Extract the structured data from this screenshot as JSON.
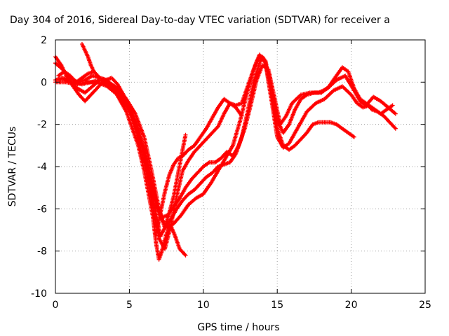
{
  "chart_data": {
    "type": "scatter",
    "title": "Day 304 of 2016, Sidereal Day-to-day VTEC variation (SDTVAR) for receiver a",
    "xlabel": "GPS time / hours",
    "ylabel": "SDTVAR / TECUs",
    "xlim": [
      0,
      25
    ],
    "ylim": [
      -10,
      2
    ],
    "xticks": [
      0,
      5,
      10,
      15,
      20,
      25
    ],
    "yticks": [
      -10,
      -8,
      -6,
      -4,
      -2,
      0,
      2
    ],
    "x_tick_labels": [
      "0",
      "5",
      "10",
      "15",
      "20",
      "25"
    ],
    "y_tick_labels": [
      "-10",
      "-8",
      "-6",
      "-4",
      "-2",
      "0",
      "2"
    ],
    "grid": true,
    "marker": "+",
    "marker_color": "#ff0000",
    "series": [
      {
        "x": [
          0.0,
          0.4,
          0.8,
          1.2,
          1.6,
          2.0,
          2.4,
          2.8,
          3.2,
          3.6,
          4.0,
          4.4,
          4.8,
          5.2,
          5.6,
          6.0,
          6.3,
          6.6,
          6.8,
          7.0,
          7.2,
          7.5,
          7.8,
          8.1,
          8.4,
          8.8
        ],
        "y": [
          1.2,
          0.8,
          0.2,
          -0.2,
          -0.6,
          -0.9,
          -0.6,
          -0.3,
          0.0,
          -0.1,
          -0.4,
          -0.9,
          -1.4,
          -2.2,
          -3.0,
          -4.2,
          -5.3,
          -6.4,
          -7.6,
          -8.4,
          -8.0,
          -7.2,
          -6.8,
          -7.3,
          -7.9,
          -8.2
        ]
      },
      {
        "x": [
          0.0,
          0.5,
          1.0,
          1.5,
          2.0,
          2.5,
          3.0,
          3.5,
          4.0,
          4.5,
          5.0,
          5.5,
          6.0,
          6.4,
          6.8,
          7.1,
          7.4,
          7.7,
          8.0,
          8.3,
          8.6,
          8.8
        ],
        "y": [
          0.9,
          0.6,
          0.2,
          0.0,
          0.1,
          0.3,
          0.2,
          0.1,
          -0.3,
          -0.8,
          -1.3,
          -2.0,
          -3.2,
          -4.8,
          -6.2,
          -7.3,
          -6.9,
          -6.2,
          -5.4,
          -4.3,
          -3.2,
          -2.5
        ]
      },
      {
        "x": [
          0.0,
          0.6,
          1.2,
          1.8,
          2.4,
          3.0,
          3.6,
          4.2,
          4.8,
          5.4,
          6.0,
          6.5,
          7.0,
          7.4,
          7.8,
          8.2,
          8.6,
          9.0,
          9.4,
          9.8,
          10.2,
          10.6,
          11.0,
          11.4,
          11.8,
          12.2,
          12.6,
          13.0,
          13.4,
          13.8,
          14.0,
          14.2,
          14.6,
          15.0,
          15.4,
          15.8,
          16.2,
          16.6,
          17.0,
          17.5,
          18.0,
          18.5,
          19.0,
          19.4,
          19.8,
          20.2,
          20.6,
          21.0,
          21.4,
          21.8,
          22.2,
          22.6,
          23.0
        ],
        "y": [
          0.1,
          0.1,
          0.0,
          -0.1,
          0.0,
          0.1,
          0.0,
          -0.3,
          -0.8,
          -1.5,
          -2.6,
          -4.2,
          -6.0,
          -6.9,
          -6.5,
          -6.0,
          -5.6,
          -5.3,
          -5.1,
          -4.8,
          -4.5,
          -4.3,
          -4.0,
          -3.9,
          -3.8,
          -3.4,
          -2.6,
          -1.4,
          0.0,
          0.9,
          1.2,
          1.0,
          -0.2,
          -1.8,
          -2.4,
          -2.0,
          -1.3,
          -0.8,
          -0.6,
          -0.5,
          -0.5,
          -0.2,
          0.3,
          0.7,
          0.5,
          -0.3,
          -0.8,
          -1.0,
          -1.3,
          -1.4,
          -1.6,
          -1.9,
          -2.2
        ]
      },
      {
        "x": [
          0.0,
          0.7,
          1.4,
          2.1,
          2.8,
          3.5,
          4.2,
          4.9,
          5.5,
          6.0,
          6.5,
          7.0,
          7.5,
          8.0,
          8.5,
          9.0,
          9.5,
          10.0,
          10.5,
          11.0,
          11.5,
          12.0,
          12.5,
          13.0,
          13.5,
          13.8,
          14.2,
          14.6,
          15.0,
          15.4,
          15.8,
          16.2,
          16.6,
          17.0,
          17.6,
          18.2,
          18.8,
          19.4,
          20.0,
          20.4,
          20.8,
          21.2,
          21.6,
          22.0,
          22.4,
          22.8
        ],
        "y": [
          0.0,
          0.0,
          -0.1,
          0.0,
          0.0,
          -0.2,
          -0.6,
          -1.2,
          -2.0,
          -3.2,
          -4.6,
          -6.2,
          -6.9,
          -6.7,
          -6.3,
          -5.8,
          -5.5,
          -5.3,
          -4.8,
          -4.2,
          -3.6,
          -3.0,
          -1.8,
          -0.4,
          0.8,
          1.3,
          0.9,
          -0.8,
          -2.6,
          -3.1,
          -2.9,
          -2.4,
          -1.9,
          -1.4,
          -1.0,
          -0.8,
          -0.4,
          -0.2,
          -0.6,
          -1.0,
          -1.2,
          -1.1,
          -1.3,
          -1.5,
          -1.3,
          -1.1
        ]
      },
      {
        "x": [
          0.0,
          0.5,
          1.0,
          1.5,
          2.0,
          2.5,
          3.0,
          3.5,
          4.0,
          4.5,
          5.0,
          5.5,
          6.0,
          6.5,
          7.0,
          7.4,
          7.8,
          8.2,
          8.6,
          9.0,
          9.4,
          9.8,
          10.2,
          10.6,
          11.0,
          11.4,
          11.8,
          12.2,
          12.6,
          13.0,
          13.4,
          13.8,
          14.2,
          14.6,
          15.0,
          15.4,
          15.8,
          16.2,
          16.6,
          17.0,
          17.4,
          17.8,
          18.2,
          18.6,
          19.0,
          19.4,
          19.8,
          20.2
        ],
        "y": [
          0.1,
          0.2,
          0.0,
          -0.3,
          -0.5,
          -0.2,
          0.1,
          0.0,
          -0.2,
          -0.6,
          -1.4,
          -2.4,
          -3.8,
          -5.6,
          -7.4,
          -7.9,
          -6.8,
          -5.4,
          -4.2,
          -3.7,
          -3.3,
          -3.0,
          -2.7,
          -2.4,
          -2.1,
          -1.5,
          -1.0,
          -1.1,
          -1.0,
          -0.2,
          0.6,
          1.2,
          1.0,
          -0.6,
          -2.2,
          -3.0,
          -3.2,
          -3.0,
          -2.7,
          -2.4,
          -2.0,
          -1.9,
          -1.9,
          -1.9,
          -2.0,
          -2.2,
          -2.4,
          -2.6
        ]
      },
      {
        "x": [
          0.2,
          0.6,
          1.0,
          1.4,
          1.8,
          2.2,
          2.6,
          3.0,
          3.4,
          3.8,
          4.2,
          4.6,
          5.0,
          5.6,
          6.2,
          6.8,
          7.2,
          7.6,
          8.0,
          8.4,
          8.8,
          9.2,
          9.6,
          10.0,
          10.4,
          10.8,
          11.2,
          11.6,
          12.0,
          12.4,
          12.8,
          13.2,
          13.6,
          14.0,
          14.4,
          14.8,
          15.2,
          15.6,
          16.0,
          16.6,
          17.2,
          17.8,
          18.4,
          19.0,
          19.6,
          20.2,
          20.6,
          21.0,
          21.5,
          22.0,
          22.5,
          23.0
        ],
        "y": [
          0.3,
          0.5,
          0.3,
          0.0,
          0.2,
          0.4,
          0.5,
          0.2,
          0.1,
          0.2,
          -0.1,
          -0.6,
          -1.2,
          -2.4,
          -4.0,
          -5.8,
          -6.4,
          -6.3,
          -5.9,
          -5.5,
          -5.0,
          -4.6,
          -4.3,
          -4.0,
          -3.8,
          -3.8,
          -3.6,
          -3.3,
          -3.5,
          -3.0,
          -2.2,
          -1.1,
          0.1,
          0.8,
          0.6,
          -0.7,
          -2.0,
          -1.6,
          -1.0,
          -0.6,
          -0.5,
          -0.5,
          -0.3,
          0.1,
          0.3,
          -0.4,
          -0.9,
          -1.1,
          -0.7,
          -0.9,
          -1.2,
          -1.5
        ]
      },
      {
        "x": [
          1.8,
          2.0,
          2.2,
          2.4,
          2.6
        ],
        "y": [
          1.8,
          1.5,
          1.2,
          0.8,
          0.5
        ]
      },
      {
        "x": [
          6.8,
          7.1,
          7.4,
          7.7,
          8.0,
          8.3,
          8.6,
          9.0,
          9.4,
          9.8,
          10.2,
          10.6,
          11.0,
          11.4,
          11.8,
          12.2,
          12.6
        ],
        "y": [
          -7.2,
          -6.2,
          -5.2,
          -4.4,
          -3.9,
          -3.6,
          -3.5,
          -3.2,
          -3.0,
          -2.6,
          -2.2,
          -1.7,
          -1.2,
          -0.8,
          -1.0,
          -1.2,
          -1.6
        ]
      }
    ]
  }
}
